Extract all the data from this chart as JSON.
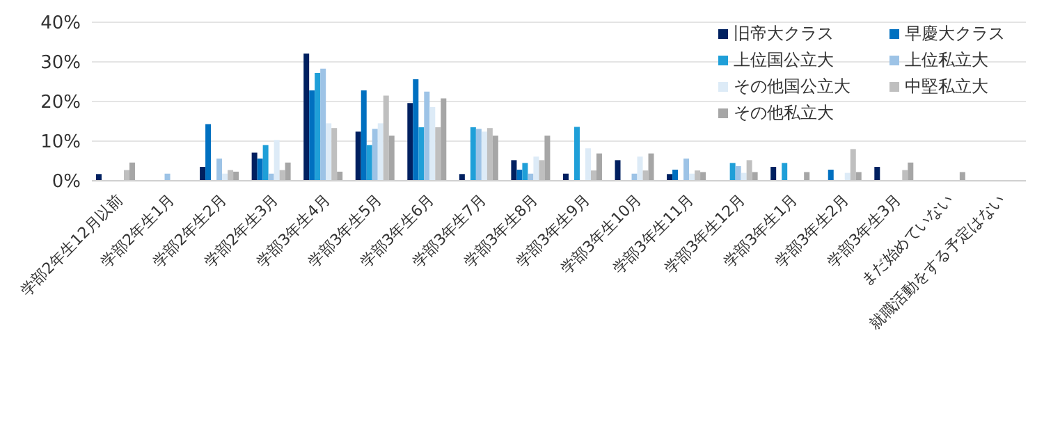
{
  "chart_data": {
    "type": "bar",
    "categories": [
      "学部2年生12月以前",
      "学部2年生1月",
      "学部2年生2月",
      "学部2年生3月",
      "学部3年生4月",
      "学部3年生5月",
      "学部3年生6月",
      "学部3年生7月",
      "学部3年生8月",
      "学部3年生9月",
      "学部3年生10月",
      "学部3年生11月",
      "学部3年生12月",
      "学部3年生1月",
      "学部3年生2月",
      "学部3年生3月",
      "まだ始めていない",
      "就職活動をする予定はない"
    ],
    "series": [
      {
        "name": "旧帝大クラス",
        "color": "#002060",
        "values": [
          1.7,
          0,
          3.5,
          7.1,
          32.1,
          12.4,
          19.6,
          1.7,
          5.2,
          1.8,
          5.2,
          1.7,
          0,
          3.5,
          0,
          3.5,
          0,
          0
        ]
      },
      {
        "name": "早慶大クラス",
        "color": "#0070c0",
        "values": [
          0,
          0,
          14.3,
          5.6,
          22.8,
          22.8,
          25.6,
          0,
          2.8,
          0,
          0,
          2.8,
          0,
          0,
          2.8,
          0,
          0,
          0
        ]
      },
      {
        "name": "上位国公立大",
        "color": "#1f9fd8",
        "values": [
          0,
          0,
          0,
          9.0,
          27.2,
          9.0,
          13.5,
          13.5,
          4.5,
          13.6,
          0,
          0,
          4.5,
          4.5,
          0,
          0,
          0,
          0
        ]
      },
      {
        "name": "上位私立大",
        "color": "#9dc3e6",
        "values": [
          0,
          1.8,
          5.6,
          1.8,
          28.3,
          13.1,
          22.5,
          13.1,
          1.8,
          0,
          1.8,
          5.6,
          3.7,
          0,
          0,
          0,
          0,
          0
        ]
      },
      {
        "name": "その他国公立大",
        "color": "#ddebf7",
        "values": [
          0,
          0,
          1.8,
          10.3,
          14.5,
          14.5,
          18.6,
          12.4,
          6.1,
          8.2,
          6.1,
          1.8,
          2.0,
          0,
          2.0,
          0,
          0,
          0
        ]
      },
      {
        "name": "中堅私立大",
        "color": "#bfbfbf",
        "values": [
          2.7,
          0,
          2.7,
          2.7,
          13.3,
          21.5,
          13.5,
          13.3,
          5.2,
          2.6,
          2.6,
          2.6,
          5.2,
          0,
          8.0,
          2.7,
          0,
          0
        ]
      },
      {
        "name": "その他私立大",
        "color": "#a6a6a6",
        "values": [
          4.6,
          0,
          2.3,
          4.6,
          2.3,
          11.4,
          20.8,
          11.4,
          11.4,
          6.9,
          6.9,
          2.2,
          2.2,
          2.2,
          2.2,
          4.6,
          2.2,
          0
        ]
      }
    ],
    "ylim": [
      0,
      40
    ],
    "yticks": [
      {
        "value": 0,
        "label": "0%"
      },
      {
        "value": 10,
        "label": "10%"
      },
      {
        "value": 20,
        "label": "20%"
      },
      {
        "value": 30,
        "label": "30%"
      },
      {
        "value": 40,
        "label": "40%"
      }
    ],
    "grid": "y",
    "legend": "top right"
  }
}
